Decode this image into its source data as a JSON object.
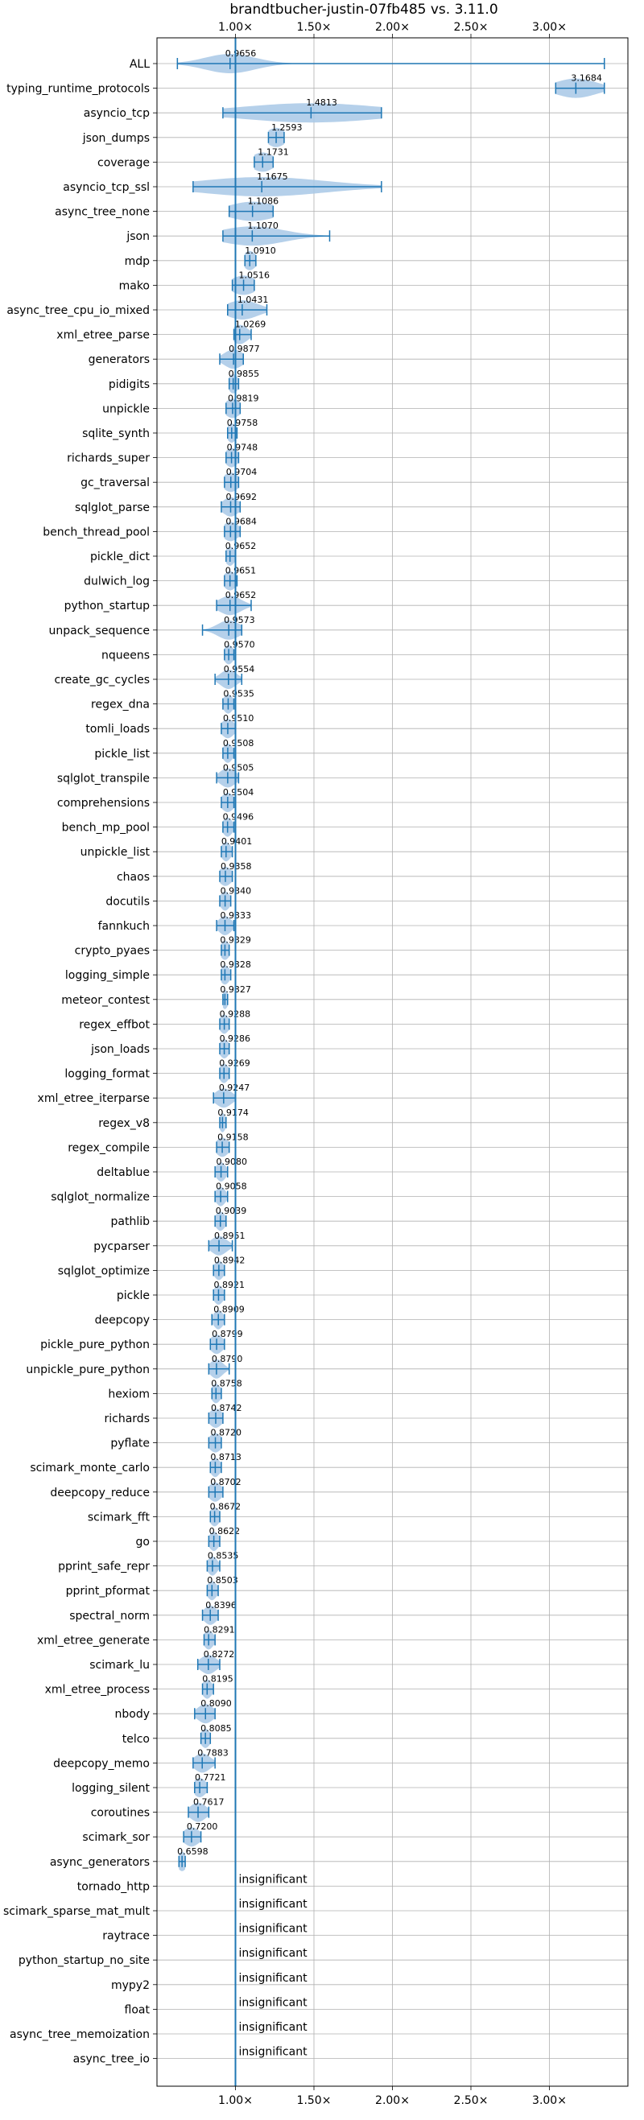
{
  "chart_data": {
    "type": "violin",
    "title": "brandtbucher-justin-07fb485 vs. 3.11.0",
    "xlabel": "",
    "ylabel": "",
    "xlim": [
      0.5,
      3.5
    ],
    "x_ticks": [
      1.0,
      1.5,
      2.0,
      2.5,
      3.0
    ],
    "x_tick_labels": [
      "1.00×",
      "1.50×",
      "2.00×",
      "2.50×",
      "3.00×"
    ],
    "grid": true,
    "reference_line": 1.0,
    "insignificant_label": "insignificant",
    "color": "#1f77b4",
    "fill_color": "#a8c8e6",
    "benchmarks": [
      {
        "name": "ALL",
        "label": "0.9656",
        "center": 0.9656,
        "min": 0.63,
        "max": 3.35,
        "spread": 0.16
      },
      {
        "name": "typing_runtime_protocols",
        "label": "3.1684",
        "center": 3.1684,
        "min": 3.04,
        "max": 3.35,
        "spread": 0.13
      },
      {
        "name": "asyncio_tcp",
        "label": "1.4813",
        "center": 1.4813,
        "min": 0.92,
        "max": 1.93,
        "spread": 0.45
      },
      {
        "name": "json_dumps",
        "label": "1.2593",
        "center": 1.2593,
        "min": 1.21,
        "max": 1.31,
        "spread": 0.06
      },
      {
        "name": "coverage",
        "label": "1.1731",
        "center": 1.1731,
        "min": 1.12,
        "max": 1.24,
        "spread": 0.07
      },
      {
        "name": "asyncio_tcp_ssl",
        "label": "1.1675",
        "center": 1.1675,
        "min": 0.73,
        "max": 1.93,
        "spread": 0.4
      },
      {
        "name": "async_tree_none",
        "label": "1.1086",
        "center": 1.1086,
        "min": 0.96,
        "max": 1.24,
        "spread": 0.15
      },
      {
        "name": "json",
        "label": "1.1070",
        "center": 1.107,
        "min": 0.92,
        "max": 1.6,
        "spread": 0.2
      },
      {
        "name": "mdp",
        "label": "1.0910",
        "center": 1.091,
        "min": 1.06,
        "max": 1.13,
        "spread": 0.04
      },
      {
        "name": "mako",
        "label": "1.0516",
        "center": 1.0516,
        "min": 0.98,
        "max": 1.12,
        "spread": 0.08
      },
      {
        "name": "async_tree_cpu_io_mixed",
        "label": "1.0431",
        "center": 1.0431,
        "min": 0.95,
        "max": 1.2,
        "spread": 0.1
      },
      {
        "name": "xml_etree_parse",
        "label": "1.0269",
        "center": 1.0269,
        "min": 0.99,
        "max": 1.1,
        "spread": 0.05
      },
      {
        "name": "generators",
        "label": "0.9877",
        "center": 0.9877,
        "min": 0.9,
        "max": 1.05,
        "spread": 0.06
      },
      {
        "name": "pidigits",
        "label": "0.9855",
        "center": 0.9855,
        "min": 0.96,
        "max": 1.02,
        "spread": 0.03
      },
      {
        "name": "unpickle",
        "label": "0.9819",
        "center": 0.9819,
        "min": 0.94,
        "max": 1.03,
        "spread": 0.05
      },
      {
        "name": "sqlite_synth",
        "label": "0.9758",
        "center": 0.9758,
        "min": 0.95,
        "max": 1.01,
        "spread": 0.03
      },
      {
        "name": "richards_super",
        "label": "0.9748",
        "center": 0.9748,
        "min": 0.94,
        "max": 1.02,
        "spread": 0.04
      },
      {
        "name": "gc_traversal",
        "label": "0.9704",
        "center": 0.9704,
        "min": 0.93,
        "max": 1.02,
        "spread": 0.05
      },
      {
        "name": "sqlglot_parse",
        "label": "0.9692",
        "center": 0.9692,
        "min": 0.91,
        "max": 1.03,
        "spread": 0.05
      },
      {
        "name": "bench_thread_pool",
        "label": "0.9684",
        "center": 0.9684,
        "min": 0.93,
        "max": 1.03,
        "spread": 0.05
      },
      {
        "name": "pickle_dict",
        "label": "0.9652",
        "center": 0.9652,
        "min": 0.94,
        "max": 1.0,
        "spread": 0.03
      },
      {
        "name": "dulwich_log",
        "label": "0.9651",
        "center": 0.9651,
        "min": 0.93,
        "max": 1.01,
        "spread": 0.04
      },
      {
        "name": "python_startup",
        "label": "0.9652",
        "center": 0.9652,
        "min": 0.88,
        "max": 1.1,
        "spread": 0.07
      },
      {
        "name": "unpack_sequence",
        "label": "0.9573",
        "center": 0.9573,
        "min": 0.79,
        "max": 1.04,
        "spread": 0.07
      },
      {
        "name": "nqueens",
        "label": "0.9570",
        "center": 0.957,
        "min": 0.93,
        "max": 0.99,
        "spread": 0.03
      },
      {
        "name": "create_gc_cycles",
        "label": "0.9554",
        "center": 0.9554,
        "min": 0.87,
        "max": 1.04,
        "spread": 0.05
      },
      {
        "name": "regex_dna",
        "label": "0.9535",
        "center": 0.9535,
        "min": 0.92,
        "max": 0.99,
        "spread": 0.03
      },
      {
        "name": "tomli_loads",
        "label": "0.9510",
        "center": 0.951,
        "min": 0.91,
        "max": 1.0,
        "spread": 0.04
      },
      {
        "name": "pickle_list",
        "label": "0.9508",
        "center": 0.9508,
        "min": 0.92,
        "max": 0.99,
        "spread": 0.03
      },
      {
        "name": "sqlglot_transpile",
        "label": "0.9505",
        "center": 0.9505,
        "min": 0.88,
        "max": 1.02,
        "spread": 0.05
      },
      {
        "name": "comprehensions",
        "label": "0.9504",
        "center": 0.9504,
        "min": 0.91,
        "max": 0.99,
        "spread": 0.04
      },
      {
        "name": "bench_mp_pool",
        "label": "0.9496",
        "center": 0.9496,
        "min": 0.92,
        "max": 0.99,
        "spread": 0.03
      },
      {
        "name": "unpickle_list",
        "label": "0.9401",
        "center": 0.9401,
        "min": 0.91,
        "max": 0.98,
        "spread": 0.03
      },
      {
        "name": "chaos",
        "label": "0.9358",
        "center": 0.9358,
        "min": 0.9,
        "max": 0.98,
        "spread": 0.04
      },
      {
        "name": "docutils",
        "label": "0.9340",
        "center": 0.934,
        "min": 0.9,
        "max": 0.97,
        "spread": 0.03
      },
      {
        "name": "fannkuch",
        "label": "0.9333",
        "center": 0.9333,
        "min": 0.88,
        "max": 0.99,
        "spread": 0.04
      },
      {
        "name": "crypto_pyaes",
        "label": "0.9329",
        "center": 0.9329,
        "min": 0.91,
        "max": 0.96,
        "spread": 0.03
      },
      {
        "name": "logging_simple",
        "label": "0.9328",
        "center": 0.9328,
        "min": 0.91,
        "max": 0.97,
        "spread": 0.03
      },
      {
        "name": "meteor_contest",
        "label": "0.9327",
        "center": 0.9327,
        "min": 0.92,
        "max": 0.95,
        "spread": 0.02
      },
      {
        "name": "regex_effbot",
        "label": "0.9288",
        "center": 0.9288,
        "min": 0.9,
        "max": 0.96,
        "spread": 0.03
      },
      {
        "name": "json_loads",
        "label": "0.9286",
        "center": 0.9286,
        "min": 0.9,
        "max": 0.96,
        "spread": 0.03
      },
      {
        "name": "logging_format",
        "label": "0.9269",
        "center": 0.9269,
        "min": 0.9,
        "max": 0.96,
        "spread": 0.03
      },
      {
        "name": "xml_etree_iterparse",
        "label": "0.9247",
        "center": 0.9247,
        "min": 0.86,
        "max": 1.0,
        "spread": 0.05
      },
      {
        "name": "regex_v8",
        "label": "0.9174",
        "center": 0.9174,
        "min": 0.9,
        "max": 0.94,
        "spread": 0.02
      },
      {
        "name": "regex_compile",
        "label": "0.9158",
        "center": 0.9158,
        "min": 0.88,
        "max": 0.96,
        "spread": 0.04
      },
      {
        "name": "deltablue",
        "label": "0.9080",
        "center": 0.908,
        "min": 0.87,
        "max": 0.95,
        "spread": 0.03
      },
      {
        "name": "sqlglot_normalize",
        "label": "0.9058",
        "center": 0.9058,
        "min": 0.87,
        "max": 0.95,
        "spread": 0.03
      },
      {
        "name": "pathlib",
        "label": "0.9039",
        "center": 0.9039,
        "min": 0.87,
        "max": 0.94,
        "spread": 0.03
      },
      {
        "name": "pycparser",
        "label": "0.8951",
        "center": 0.8951,
        "min": 0.83,
        "max": 0.98,
        "spread": 0.05
      },
      {
        "name": "sqlglot_optimize",
        "label": "0.8942",
        "center": 0.8942,
        "min": 0.86,
        "max": 0.93,
        "spread": 0.03
      },
      {
        "name": "pickle",
        "label": "0.8921",
        "center": 0.8921,
        "min": 0.86,
        "max": 0.93,
        "spread": 0.03
      },
      {
        "name": "deepcopy",
        "label": "0.8909",
        "center": 0.8909,
        "min": 0.85,
        "max": 0.93,
        "spread": 0.03
      },
      {
        "name": "pickle_pure_python",
        "label": "0.8799",
        "center": 0.8799,
        "min": 0.84,
        "max": 0.93,
        "spread": 0.04
      },
      {
        "name": "unpickle_pure_python",
        "label": "0.8790",
        "center": 0.879,
        "min": 0.83,
        "max": 0.96,
        "spread": 0.04
      },
      {
        "name": "hexiom",
        "label": "0.8758",
        "center": 0.8758,
        "min": 0.85,
        "max": 0.91,
        "spread": 0.03
      },
      {
        "name": "richards",
        "label": "0.8742",
        "center": 0.8742,
        "min": 0.83,
        "max": 0.92,
        "spread": 0.04
      },
      {
        "name": "pyflate",
        "label": "0.8720",
        "center": 0.872,
        "min": 0.83,
        "max": 0.91,
        "spread": 0.04
      },
      {
        "name": "scimark_monte_carlo",
        "label": "0.8713",
        "center": 0.8713,
        "min": 0.84,
        "max": 0.91,
        "spread": 0.03
      },
      {
        "name": "deepcopy_reduce",
        "label": "0.8702",
        "center": 0.8702,
        "min": 0.83,
        "max": 0.92,
        "spread": 0.04
      },
      {
        "name": "scimark_fft",
        "label": "0.8672",
        "center": 0.8672,
        "min": 0.84,
        "max": 0.9,
        "spread": 0.03
      },
      {
        "name": "go",
        "label": "0.8622",
        "center": 0.8622,
        "min": 0.83,
        "max": 0.9,
        "spread": 0.03
      },
      {
        "name": "pprint_safe_repr",
        "label": "0.8535",
        "center": 0.8535,
        "min": 0.82,
        "max": 0.9,
        "spread": 0.03
      },
      {
        "name": "pprint_pformat",
        "label": "0.8503",
        "center": 0.8503,
        "min": 0.82,
        "max": 0.89,
        "spread": 0.03
      },
      {
        "name": "spectral_norm",
        "label": "0.8396",
        "center": 0.8396,
        "min": 0.79,
        "max": 0.89,
        "spread": 0.04
      },
      {
        "name": "xml_etree_generate",
        "label": "0.8291",
        "center": 0.8291,
        "min": 0.8,
        "max": 0.87,
        "spread": 0.03
      },
      {
        "name": "scimark_lu",
        "label": "0.8272",
        "center": 0.8272,
        "min": 0.76,
        "max": 0.9,
        "spread": 0.05
      },
      {
        "name": "xml_etree_process",
        "label": "0.8195",
        "center": 0.8195,
        "min": 0.79,
        "max": 0.86,
        "spread": 0.03
      },
      {
        "name": "nbody",
        "label": "0.8090",
        "center": 0.809,
        "min": 0.74,
        "max": 0.87,
        "spread": 0.05
      },
      {
        "name": "telco",
        "label": "0.8085",
        "center": 0.8085,
        "min": 0.78,
        "max": 0.84,
        "spread": 0.03
      },
      {
        "name": "deepcopy_memo",
        "label": "0.7883",
        "center": 0.7883,
        "min": 0.73,
        "max": 0.87,
        "spread": 0.05
      },
      {
        "name": "logging_silent",
        "label": "0.7721",
        "center": 0.7721,
        "min": 0.74,
        "max": 0.82,
        "spread": 0.04
      },
      {
        "name": "coroutines",
        "label": "0.7617",
        "center": 0.7617,
        "min": 0.7,
        "max": 0.83,
        "spread": 0.05
      },
      {
        "name": "scimark_sor",
        "label": "0.7200",
        "center": 0.72,
        "min": 0.67,
        "max": 0.78,
        "spread": 0.05
      },
      {
        "name": "async_generators",
        "label": "0.6598",
        "center": 0.6598,
        "min": 0.64,
        "max": 0.68,
        "spread": 0.03
      },
      {
        "name": "tornado_http",
        "insignificant": true
      },
      {
        "name": "scimark_sparse_mat_mult",
        "insignificant": true
      },
      {
        "name": "raytrace",
        "insignificant": true
      },
      {
        "name": "python_startup_no_site",
        "insignificant": true
      },
      {
        "name": "mypy2",
        "insignificant": true
      },
      {
        "name": "float",
        "insignificant": true
      },
      {
        "name": "async_tree_memoization",
        "insignificant": true
      },
      {
        "name": "async_tree_io",
        "insignificant": true
      }
    ]
  }
}
